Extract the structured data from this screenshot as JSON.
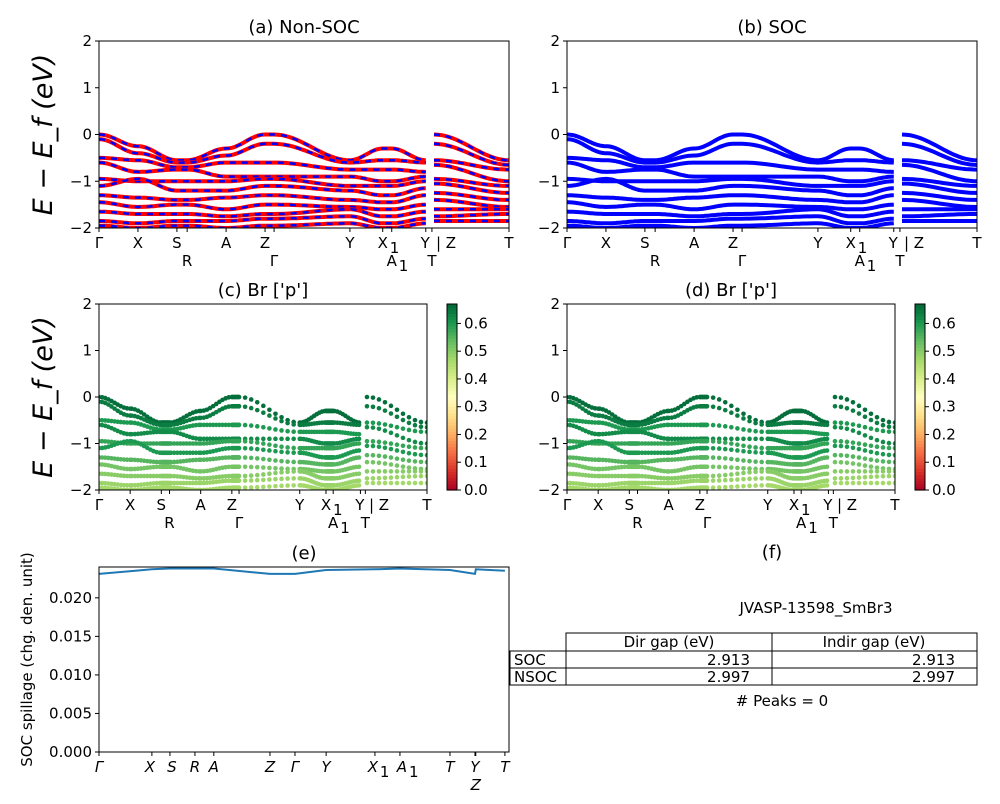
{
  "chart_data": [
    {
      "id": "a",
      "type": "line",
      "title": "(a) Non-SOC",
      "ylabel": "E − E_f (eV)",
      "ylim": [
        -2,
        2
      ],
      "yticks": [
        "−2",
        "−1",
        "0",
        "1",
        "2"
      ],
      "xtick_labels": [
        "Γ",
        "X",
        "S",
        "R",
        "A",
        "Z",
        "Γ",
        "Y",
        "X",
        "A",
        "Y",
        "T",
        "| Z",
        "T"
      ],
      "xtick_subscripts": [
        "",
        "",
        "",
        "",
        "",
        "",
        "",
        "",
        "1",
        "1",
        "",
        "",
        "",
        ""
      ],
      "colors": {
        "spin_up": "#ff0000",
        "spin_down": "#0000ff"
      }
    },
    {
      "id": "b",
      "type": "line",
      "title": "(b) SOC",
      "ylim": [
        -2,
        2
      ],
      "yticks": [
        "−2",
        "−1",
        "0",
        "1",
        "2"
      ],
      "xtick_labels": [
        "Γ",
        "X",
        "S",
        "R",
        "A",
        "Z",
        "Γ",
        "Y",
        "X",
        "A",
        "Y",
        "T",
        "| Z",
        "T"
      ],
      "xtick_subscripts": [
        "",
        "",
        "",
        "",
        "",
        "",
        "",
        "",
        "1",
        "1",
        "",
        "",
        "",
        ""
      ],
      "colors": {
        "bands": "#0000ff"
      }
    },
    {
      "id": "c",
      "type": "scatter",
      "title": "(c)  Br ['p']",
      "ylabel": "E − E_f (eV)",
      "ylim": [
        -2,
        2
      ],
      "yticks": [
        "−2",
        "−1",
        "0",
        "1",
        "2"
      ],
      "xtick_labels": [
        "Γ",
        "X",
        "S",
        "R",
        "A",
        "Z",
        "Γ",
        "Y",
        "X",
        "A",
        "Y",
        "T",
        "| Z",
        "T"
      ],
      "xtick_subscripts": [
        "",
        "",
        "",
        "",
        "",
        "",
        "",
        "",
        "1",
        "1",
        "",
        "",
        "",
        ""
      ],
      "colorbar": {
        "range": [
          0,
          0.67
        ],
        "ticks": [
          "0.0",
          "0.1",
          "0.2",
          "0.3",
          "0.4",
          "0.5",
          "0.6"
        ],
        "colormap": "RdYlGn"
      }
    },
    {
      "id": "d",
      "type": "scatter",
      "title": "(d) Br ['p']",
      "ylim": [
        -2,
        2
      ],
      "yticks": [
        "−2",
        "−1",
        "0",
        "1",
        "2"
      ],
      "xtick_labels": [
        "Γ",
        "X",
        "S",
        "R",
        "A",
        "Z",
        "Γ",
        "Y",
        "X",
        "A",
        "Y",
        "T",
        "| Z",
        "T"
      ],
      "xtick_subscripts": [
        "",
        "",
        "",
        "",
        "",
        "",
        "",
        "",
        "1",
        "1",
        "",
        "",
        "",
        ""
      ],
      "colorbar": {
        "range": [
          0,
          0.67
        ],
        "ticks": [
          "0.0",
          "0.1",
          "0.2",
          "0.3",
          "0.4",
          "0.5",
          "0.6"
        ],
        "colormap": "RdYlGn"
      }
    },
    {
      "id": "e",
      "type": "line",
      "title": "(e)",
      "ylabel": "SOC spillage (chg. den. unit)",
      "ylim": [
        0,
        0.024
      ],
      "yticks": [
        "0.000",
        "0.005",
        "0.010",
        "0.015",
        "0.020"
      ],
      "xtick_labels": [
        "Γ",
        "X",
        "S",
        "R",
        "A",
        "Z",
        "Γ",
        "Y",
        "X",
        "A",
        "T",
        "Y",
        "Z",
        "T"
      ],
      "xtick_subscripts": [
        "",
        "",
        "",
        "",
        "",
        "",
        "",
        "",
        "1",
        "1",
        "",
        "",
        "",
        ""
      ],
      "values": [
        0.0233,
        0.0239,
        0.024,
        0.024,
        0.024,
        0.0233,
        0.0233,
        0.0238,
        0.0239,
        0.024,
        0.0238,
        0.0233,
        0.0239,
        0.0237
      ],
      "colors": {
        "line": "#1f77b4"
      }
    }
  ],
  "bands": {
    "energies_at_high_symmetry_points": [
      [
        0,
        -0.25,
        -0.55,
        -0.55,
        -0.3,
        0,
        0,
        -0.55,
        -0.3,
        -0.3,
        -0.55,
        0,
        -0.55
      ],
      [
        -0.1,
        -0.4,
        -0.6,
        -0.6,
        -0.45,
        -0.2,
        -0.2,
        -0.6,
        -0.55,
        -0.55,
        -0.6,
        -0.2,
        -0.65
      ],
      [
        -0.5,
        -0.55,
        -0.7,
        -0.7,
        -0.6,
        -0.6,
        -0.6,
        -0.75,
        -0.75,
        -0.75,
        -0.8,
        -0.55,
        -0.75
      ],
      [
        -0.6,
        -0.8,
        -0.75,
        -0.75,
        -0.9,
        -0.9,
        -0.9,
        -0.9,
        -1.0,
        -1.0,
        -0.9,
        -0.65,
        -1.0
      ],
      [
        -0.95,
        -1.0,
        -1.0,
        -1.0,
        -1.0,
        -0.95,
        -0.95,
        -1.1,
        -1.1,
        -1.1,
        -1.0,
        -0.95,
        -1.1
      ],
      [
        -1.1,
        -0.95,
        -1.2,
        -1.2,
        -1.2,
        -1.1,
        -1.1,
        -1.2,
        -1.3,
        -1.3,
        -1.15,
        -1.05,
        -1.25
      ],
      [
        -1.3,
        -1.35,
        -1.4,
        -1.4,
        -1.35,
        -1.3,
        -1.3,
        -1.4,
        -1.45,
        -1.45,
        -1.3,
        -1.25,
        -1.4
      ],
      [
        -1.45,
        -1.55,
        -1.5,
        -1.5,
        -1.6,
        -1.5,
        -1.5,
        -1.55,
        -1.6,
        -1.6,
        -1.5,
        -1.4,
        -1.55
      ],
      [
        -1.65,
        -1.7,
        -1.7,
        -1.7,
        -1.75,
        -1.7,
        -1.7,
        -1.6,
        -1.75,
        -1.75,
        -1.65,
        -1.6,
        -1.6
      ],
      [
        -1.85,
        -1.9,
        -1.85,
        -1.85,
        -1.85,
        -1.8,
        -1.8,
        -1.75,
        -1.9,
        -1.9,
        -1.8,
        -1.75,
        -1.7
      ],
      [
        -1.95,
        -2.0,
        -1.95,
        -1.95,
        -2.0,
        -1.95,
        -1.95,
        -1.9,
        -2.0,
        -2.0,
        -1.9,
        -1.85,
        -1.85
      ]
    ],
    "br_p_weights": [
      0.66,
      0.64,
      0.6,
      0.62,
      0.58,
      0.6,
      0.55,
      0.52,
      0.5,
      0.48,
      0.47
    ]
  },
  "panel_f": {
    "title": "(f)",
    "material": "JVASP-13598_SmBr3",
    "table": {
      "columns": [
        "Dir gap (eV)",
        "Indir gap (eV)"
      ],
      "rows": [
        {
          "label": "SOC",
          "values": [
            "2.913",
            "2.913"
          ]
        },
        {
          "label": "NSOC",
          "values": [
            "2.997",
            "2.997"
          ]
        }
      ]
    },
    "peaks": "# Peaks = 0"
  }
}
